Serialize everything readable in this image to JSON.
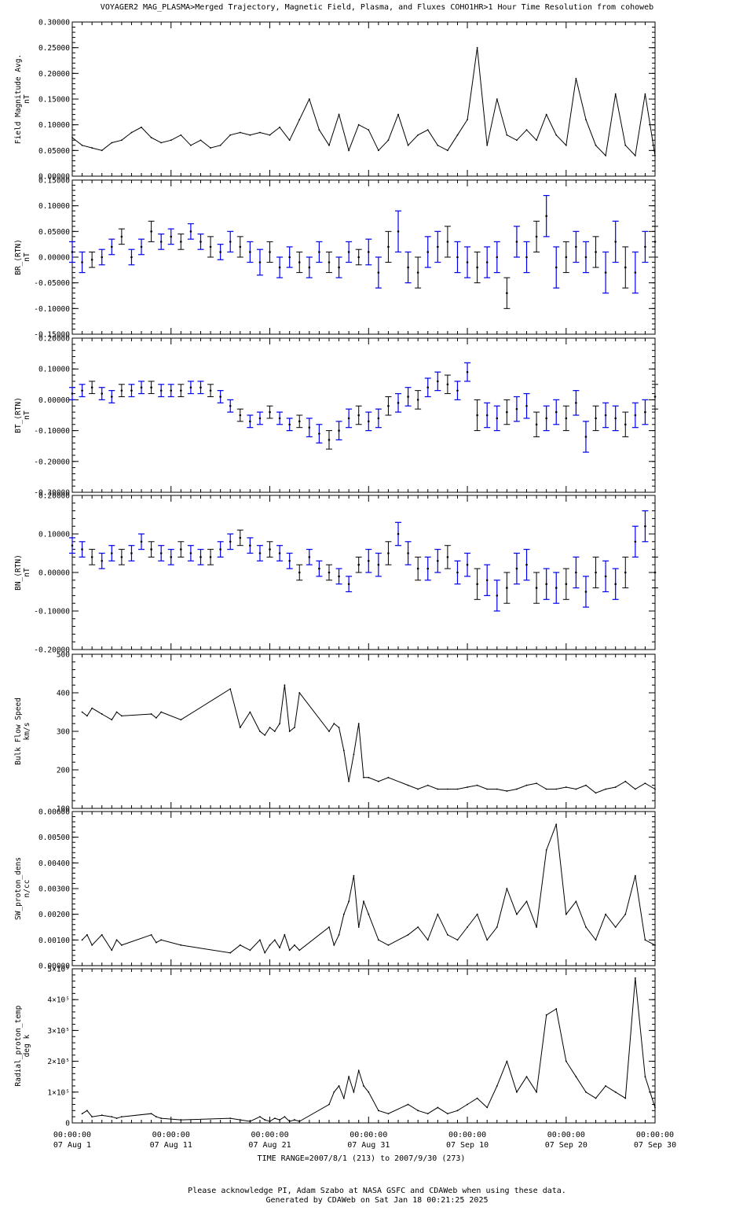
{
  "header": {
    "title": "VOYAGER2  MAG_PLASMA>Merged Trajectory, Magnetic Field, Plasma, and Fluxes  COHO1HR>1 Hour Time Resolution from cohoweb"
  },
  "footer": {
    "time_range": "TIME RANGE=2007/8/1 (213) to 2007/9/30 (273)",
    "acknowledge": "Please acknowledge PI, Adam Szabo at NASA GSFC and CDAWeb when using these data.",
    "generated": "Generated by CDAWeb on Sat Jan 18 00:21:25 2025"
  },
  "colors": {
    "axis": "#000000",
    "data": "#000000",
    "error_bars": "#0000ee"
  },
  "chart_data": {
    "type": "line",
    "x_range": [
      "2007-08-01",
      "2007-09-30"
    ],
    "x_ticks": [
      {
        "time": "00:00:00",
        "date": "07 Aug  1"
      },
      {
        "time": "00:00:00",
        "date": "07 Aug 11"
      },
      {
        "time": "00:00:00",
        "date": "07 Aug 21"
      },
      {
        "time": "00:00:00",
        "date": "07 Aug 31"
      },
      {
        "time": "00:00:00",
        "date": "07 Sep 10"
      },
      {
        "time": "00:00:00",
        "date": "07 Sep 20"
      },
      {
        "time": "00:00:00",
        "date": "07 Sep 30"
      }
    ],
    "panels": [
      {
        "id": "field-magnitude",
        "ylabel": "Field Magnitude Avg.",
        "unit": "nT",
        "ylim": [
          0.0,
          0.3
        ],
        "yticks": [
          "0.00000",
          "0.05000",
          "0.10000",
          "0.15000",
          "0.20000",
          "0.25000",
          "0.30000"
        ],
        "error_bars": false,
        "x": [
          1,
          2,
          3,
          4,
          5,
          6,
          7,
          8,
          9,
          10,
          11,
          12,
          13,
          14,
          15,
          16,
          17,
          18,
          19,
          20,
          21,
          22,
          23,
          24,
          25,
          26,
          27,
          28,
          29,
          30,
          31,
          32,
          33,
          34,
          35,
          36,
          37,
          38,
          39,
          40,
          41,
          42,
          43,
          44,
          45,
          46,
          47,
          48,
          49,
          50,
          51,
          52,
          53,
          54,
          55,
          56,
          57,
          58,
          59,
          60
        ],
        "y": [
          0.075,
          0.06,
          0.055,
          0.05,
          0.065,
          0.07,
          0.085,
          0.095,
          0.075,
          0.065,
          0.07,
          0.08,
          0.06,
          0.07,
          0.055,
          0.06,
          0.08,
          0.085,
          0.08,
          0.085,
          0.08,
          0.095,
          0.07,
          0.11,
          0.15,
          0.09,
          0.06,
          0.12,
          0.05,
          0.1,
          0.09,
          0.05,
          0.07,
          0.12,
          0.06,
          0.08,
          0.09,
          0.06,
          0.05,
          0.08,
          0.11,
          0.25,
          0.06,
          0.15,
          0.08,
          0.07,
          0.09,
          0.07,
          0.12,
          0.08,
          0.06,
          0.19,
          0.11,
          0.06,
          0.04,
          0.16,
          0.06,
          0.04,
          0.16,
          0.04
        ]
      },
      {
        "id": "br-rtn",
        "ylabel": "BR_(RTN)",
        "unit": "nT",
        "ylim": [
          -0.15,
          0.15
        ],
        "yticks": [
          "-0.15000",
          "-0.10000",
          "-0.05000",
          "0.00000",
          "0.05000",
          "0.10000",
          "0.15000"
        ],
        "error_bars": true,
        "x": [
          1,
          2,
          3,
          4,
          5,
          6,
          7,
          8,
          9,
          10,
          11,
          12,
          13,
          14,
          15,
          16,
          17,
          18,
          19,
          20,
          21,
          22,
          23,
          24,
          25,
          26,
          27,
          28,
          29,
          30,
          31,
          32,
          33,
          34,
          35,
          36,
          37,
          38,
          39,
          40,
          41,
          42,
          43,
          44,
          45,
          46,
          47,
          48,
          49,
          50,
          51,
          52,
          53,
          54,
          55,
          56,
          57,
          58,
          59,
          60
        ],
        "y": [
          0.01,
          -0.01,
          -0.005,
          0.0,
          0.02,
          0.04,
          0.0,
          0.02,
          0.05,
          0.03,
          0.04,
          0.03,
          0.05,
          0.03,
          0.02,
          0.01,
          0.03,
          0.02,
          0.01,
          -0.01,
          0.01,
          -0.02,
          0.0,
          -0.01,
          -0.02,
          0.01,
          -0.01,
          -0.02,
          0.01,
          0.0,
          0.01,
          -0.03,
          0.02,
          0.05,
          -0.02,
          -0.03,
          0.01,
          0.02,
          0.03,
          0.0,
          -0.01,
          -0.02,
          -0.01,
          0.0,
          -0.07,
          0.03,
          0.0,
          0.04,
          0.08,
          -0.02,
          0.0,
          0.02,
          0.0,
          0.01,
          -0.03,
          0.03,
          -0.02,
          -0.03,
          0.02,
          0.03
        ],
        "err": [
          0.02,
          0.02,
          0.015,
          0.015,
          0.015,
          0.015,
          0.015,
          0.015,
          0.02,
          0.015,
          0.015,
          0.015,
          0.015,
          0.015,
          0.02,
          0.015,
          0.02,
          0.02,
          0.02,
          0.025,
          0.02,
          0.02,
          0.02,
          0.02,
          0.02,
          0.02,
          0.02,
          0.02,
          0.02,
          0.015,
          0.025,
          0.03,
          0.03,
          0.04,
          0.03,
          0.03,
          0.03,
          0.03,
          0.03,
          0.03,
          0.03,
          0.03,
          0.03,
          0.03,
          0.03,
          0.03,
          0.03,
          0.03,
          0.04,
          0.04,
          0.03,
          0.03,
          0.03,
          0.03,
          0.04,
          0.04,
          0.04,
          0.04,
          0.03,
          0.03
        ]
      },
      {
        "id": "bt-rtn",
        "ylabel": "BT_(RTN)",
        "unit": "nT",
        "ylim": [
          -0.3,
          0.2
        ],
        "yticks": [
          "-0.30000",
          "-0.20000",
          "-0.10000",
          "0.00000",
          "0.10000",
          "0.20000"
        ],
        "error_bars": true,
        "x": [
          1,
          2,
          3,
          4,
          5,
          6,
          7,
          8,
          9,
          10,
          11,
          12,
          13,
          14,
          15,
          16,
          17,
          18,
          19,
          20,
          21,
          22,
          23,
          24,
          25,
          26,
          27,
          28,
          29,
          30,
          31,
          32,
          33,
          34,
          35,
          36,
          37,
          38,
          39,
          40,
          41,
          42,
          43,
          44,
          45,
          46,
          47,
          48,
          49,
          50,
          51,
          52,
          53,
          54,
          55,
          56,
          57,
          58,
          59,
          60
        ],
        "y": [
          0.02,
          0.03,
          0.04,
          0.02,
          0.01,
          0.03,
          0.03,
          0.04,
          0.04,
          0.03,
          0.03,
          0.03,
          0.04,
          0.04,
          0.03,
          0.01,
          -0.02,
          -0.05,
          -0.07,
          -0.06,
          -0.04,
          -0.06,
          -0.08,
          -0.07,
          -0.09,
          -0.11,
          -0.13,
          -0.1,
          -0.06,
          -0.05,
          -0.07,
          -0.06,
          -0.02,
          -0.01,
          0.01,
          0.0,
          0.04,
          0.06,
          0.05,
          0.03,
          0.09,
          -0.05,
          -0.05,
          -0.06,
          -0.04,
          -0.03,
          -0.02,
          -0.08,
          -0.06,
          -0.04,
          -0.06,
          -0.01,
          -0.12,
          -0.06,
          -0.05,
          -0.06,
          -0.08,
          -0.05,
          -0.04,
          0.01
        ],
        "err": [
          0.02,
          0.02,
          0.02,
          0.02,
          0.02,
          0.02,
          0.02,
          0.02,
          0.02,
          0.02,
          0.02,
          0.02,
          0.02,
          0.02,
          0.02,
          0.02,
          0.02,
          0.02,
          0.02,
          0.02,
          0.02,
          0.02,
          0.02,
          0.02,
          0.03,
          0.03,
          0.03,
          0.03,
          0.03,
          0.03,
          0.03,
          0.03,
          0.03,
          0.03,
          0.03,
          0.03,
          0.03,
          0.03,
          0.03,
          0.03,
          0.03,
          0.05,
          0.04,
          0.04,
          0.04,
          0.04,
          0.04,
          0.04,
          0.04,
          0.04,
          0.04,
          0.04,
          0.05,
          0.04,
          0.04,
          0.04,
          0.04,
          0.04,
          0.04,
          0.04
        ]
      },
      {
        "id": "bn-rtn",
        "ylabel": "BN_(RTN)",
        "unit": "nT",
        "ylim": [
          -0.2,
          0.2
        ],
        "yticks": [
          "-0.20000",
          "-0.10000",
          "0.00000",
          "0.10000",
          "0.20000"
        ],
        "error_bars": true,
        "x": [
          1,
          2,
          3,
          4,
          5,
          6,
          7,
          8,
          9,
          10,
          11,
          12,
          13,
          14,
          15,
          16,
          17,
          18,
          19,
          20,
          21,
          22,
          23,
          24,
          25,
          26,
          27,
          28,
          29,
          30,
          31,
          32,
          33,
          34,
          35,
          36,
          37,
          38,
          39,
          40,
          41,
          42,
          43,
          44,
          45,
          46,
          47,
          48,
          49,
          50,
          51,
          52,
          53,
          54,
          55,
          56,
          57,
          58,
          59,
          60
        ],
        "y": [
          0.07,
          0.06,
          0.04,
          0.03,
          0.05,
          0.04,
          0.05,
          0.08,
          0.06,
          0.05,
          0.04,
          0.06,
          0.05,
          0.04,
          0.04,
          0.06,
          0.08,
          0.09,
          0.07,
          0.05,
          0.06,
          0.05,
          0.03,
          0.0,
          0.04,
          0.01,
          0.0,
          -0.01,
          -0.03,
          0.02,
          0.03,
          0.02,
          0.05,
          0.1,
          0.05,
          0.01,
          0.01,
          0.03,
          0.04,
          0.0,
          0.02,
          -0.03,
          -0.02,
          -0.06,
          -0.04,
          0.01,
          0.02,
          -0.04,
          -0.03,
          -0.04,
          -0.03,
          0.0,
          -0.05,
          0.0,
          -0.01,
          -0.03,
          0.0,
          0.08,
          0.12,
          0.0
        ],
        "err": [
          0.02,
          0.02,
          0.02,
          0.02,
          0.02,
          0.02,
          0.02,
          0.02,
          0.02,
          0.02,
          0.02,
          0.02,
          0.02,
          0.02,
          0.02,
          0.02,
          0.02,
          0.02,
          0.02,
          0.02,
          0.02,
          0.02,
          0.02,
          0.02,
          0.02,
          0.02,
          0.02,
          0.02,
          0.02,
          0.02,
          0.03,
          0.03,
          0.03,
          0.03,
          0.03,
          0.03,
          0.03,
          0.03,
          0.03,
          0.03,
          0.03,
          0.04,
          0.04,
          0.04,
          0.04,
          0.04,
          0.04,
          0.04,
          0.04,
          0.04,
          0.04,
          0.04,
          0.04,
          0.04,
          0.04,
          0.04,
          0.04,
          0.04,
          0.04,
          0.04
        ]
      },
      {
        "id": "bulk-flow-speed",
        "ylabel": "Bulk Flow Speed",
        "unit": "km/s",
        "ylim": [
          100,
          500
        ],
        "yticks": [
          "100",
          "200",
          "300",
          "400",
          "500"
        ],
        "error_bars": false,
        "x": [
          2,
          2.5,
          3,
          4,
          5,
          5.5,
          6,
          9,
          9.5,
          10,
          12,
          17,
          18,
          19,
          20,
          20.5,
          21,
          21.5,
          22,
          22.5,
          23,
          23.5,
          24,
          27,
          27.5,
          28,
          28.5,
          29,
          29.5,
          30,
          30.5,
          31,
          32,
          33,
          35,
          36,
          37,
          38,
          39,
          40,
          41,
          42,
          43,
          44,
          45,
          46,
          47,
          48,
          49,
          50,
          51,
          52,
          53,
          54,
          55,
          56,
          57,
          58,
          59,
          60
        ],
        "y": [
          350,
          340,
          360,
          345,
          330,
          350,
          340,
          345,
          335,
          350,
          330,
          410,
          310,
          350,
          300,
          290,
          310,
          300,
          320,
          420,
          300,
          310,
          400,
          300,
          320,
          310,
          250,
          170,
          240,
          320,
          180,
          180,
          170,
          180,
          160,
          150,
          160,
          150,
          150,
          150,
          155,
          160,
          150,
          150,
          145,
          150,
          160,
          165,
          150,
          150,
          155,
          150,
          160,
          140,
          150,
          155,
          170,
          150,
          165,
          150
        ]
      },
      {
        "id": "sw-proton-dens",
        "ylabel": "SW_proton_dens",
        "unit": "n/cc",
        "ylim": [
          0.0,
          0.006
        ],
        "yticks": [
          "0.00000",
          "0.00100",
          "0.00200",
          "0.00300",
          "0.00400",
          "0.00500",
          "0.00600"
        ],
        "error_bars": false,
        "x": [
          2,
          2.5,
          3,
          4,
          5,
          5.5,
          6,
          9,
          9.5,
          10,
          12,
          17,
          18,
          19,
          20,
          20.5,
          21,
          21.5,
          22,
          22.5,
          23,
          23.5,
          24,
          27,
          27.5,
          28,
          28.5,
          29,
          29.5,
          30,
          30.5,
          31,
          32,
          33,
          35,
          36,
          37,
          38,
          39,
          40,
          41,
          42,
          43,
          44,
          45,
          46,
          47,
          48,
          49,
          50,
          51,
          52,
          53,
          54,
          55,
          56,
          57,
          58,
          59,
          60
        ],
        "y": [
          0.001,
          0.0012,
          0.0008,
          0.0012,
          0.0006,
          0.001,
          0.0008,
          0.0012,
          0.0009,
          0.001,
          0.0008,
          0.0005,
          0.0008,
          0.0006,
          0.001,
          0.0005,
          0.0008,
          0.001,
          0.0007,
          0.0012,
          0.0006,
          0.0008,
          0.0006,
          0.0015,
          0.0008,
          0.0012,
          0.002,
          0.0025,
          0.0035,
          0.0015,
          0.0025,
          0.002,
          0.001,
          0.0008,
          0.0012,
          0.0015,
          0.001,
          0.002,
          0.0012,
          0.001,
          0.0015,
          0.002,
          0.001,
          0.0015,
          0.003,
          0.002,
          0.0025,
          0.0015,
          0.0045,
          0.0055,
          0.002,
          0.0025,
          0.0015,
          0.001,
          0.002,
          0.0015,
          0.002,
          0.0035,
          0.001,
          0.0008
        ]
      },
      {
        "id": "radial-proton-temp",
        "ylabel": "Radial_proton_temp",
        "unit": "deg k",
        "ylim": [
          0,
          500000
        ],
        "yticks": [
          "0",
          "1x10^5",
          "2x10^5",
          "3x10^5",
          "4x10^5",
          "5x10^5"
        ],
        "error_bars": false,
        "x": [
          2,
          2.5,
          3,
          4,
          5,
          5.5,
          6,
          9,
          9.5,
          10,
          12,
          17,
          18,
          19,
          20,
          20.5,
          21,
          21.5,
          22,
          22.5,
          23,
          23.5,
          24,
          27,
          27.5,
          28,
          28.5,
          29,
          29.5,
          30,
          30.5,
          31,
          32,
          33,
          35,
          36,
          37,
          38,
          39,
          40,
          41,
          42,
          43,
          44,
          45,
          46,
          47,
          48,
          49,
          50,
          51,
          52,
          53,
          54,
          55,
          56,
          57,
          58,
          59,
          60
        ],
        "y": [
          30000,
          40000,
          20000,
          25000,
          20000,
          15000,
          20000,
          30000,
          20000,
          15000,
          10000,
          15000,
          10000,
          5000,
          20000,
          10000,
          5000,
          15000,
          10000,
          20000,
          5000,
          10000,
          5000,
          60000,
          100000,
          120000,
          80000,
          150000,
          100000,
          170000,
          120000,
          100000,
          40000,
          30000,
          60000,
          40000,
          30000,
          50000,
          30000,
          40000,
          60000,
          80000,
          50000,
          120000,
          200000,
          100000,
          150000,
          100000,
          350000,
          370000,
          200000,
          150000,
          100000,
          80000,
          120000,
          100000,
          80000,
          470000,
          150000,
          50000
        ]
      }
    ]
  }
}
